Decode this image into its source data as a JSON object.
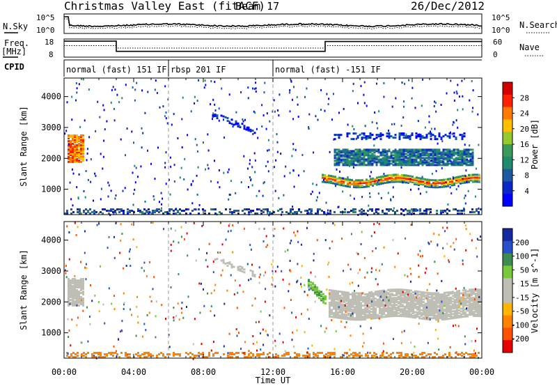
{
  "header": {
    "station": "Christmas Valley East (fitACF)",
    "beam": "Beam 17",
    "date": "26/Dec/2012"
  },
  "noise_panel": {
    "left_label": "N.Sky",
    "left_ticks": [
      "10^5",
      "10^0"
    ],
    "right_ticks": [
      "10^5",
      "10^0"
    ],
    "right_label": "N.Search"
  },
  "freq_panel": {
    "left_label": "Freq.",
    "left_unit": "[MHz]",
    "left_ticks": [
      "18",
      "8"
    ],
    "right_ticks": [
      "60",
      "0"
    ],
    "right_label": "Nave",
    "freq_steps": [
      [
        0,
        16.8
      ],
      [
        3.0,
        11.2
      ],
      [
        15.0,
        16.6
      ],
      [
        24,
        16.6
      ]
    ],
    "nave_steps": [
      [
        0,
        38
      ],
      [
        3.0,
        30
      ],
      [
        15.0,
        38
      ],
      [
        24,
        38
      ]
    ]
  },
  "cpid": {
    "label": "CPID",
    "segments": [
      {
        "start": 0,
        "end": 6.0,
        "label": "normal (fast) 151 IF"
      },
      {
        "start": 6.0,
        "end": 12.0,
        "label": "rbsp 201 IF"
      },
      {
        "start": 12.0,
        "end": 24,
        "label": "normal (fast) -151 IF"
      }
    ]
  },
  "x_axis": {
    "label": "Time UT",
    "ticks": [
      "00:00",
      "04:00",
      "08:00",
      "12:00",
      "16:00",
      "20:00",
      "00:00"
    ],
    "range_hours": [
      0,
      24
    ]
  },
  "chart_data": [
    {
      "type": "heatmap",
      "ylabel": "Slant Range [km]",
      "yticks": [
        1000,
        2000,
        3000,
        4000
      ],
      "ylim": [
        180,
        4600
      ],
      "xlim": [
        0,
        24
      ],
      "colorbar": {
        "label": "Power [dB]",
        "ticks": [
          "28",
          "24",
          "20",
          "16",
          "12",
          "8",
          "4"
        ],
        "colors": [
          "#d40000",
          "#ff2200",
          "#ff7a00",
          "#ffbf00",
          "#96c832",
          "#3c9a5a",
          "#1e8a6e",
          "#1e5aa0",
          "#0a28c8",
          "#0000ff"
        ]
      },
      "features": [
        {
          "name": "band",
          "x": [
            0.2,
            1.1
          ],
          "center_km": 2300,
          "level": 24
        },
        {
          "name": "band",
          "x": [
            14.8,
            23.9
          ],
          "center_km": 1300,
          "level": 26
        },
        {
          "name": "band",
          "x": [
            15.5,
            23.5
          ],
          "center_km": 2000,
          "level": 10
        },
        {
          "name": "band",
          "x": [
            15.5,
            23.0
          ],
          "center_km": 2700,
          "level": 6
        },
        {
          "name": "band",
          "x": [
            8.5,
            11.0
          ],
          "center_km": 3200,
          "level": 5
        },
        {
          "name": "band",
          "x": [
            0,
            24
          ],
          "center_km": 250,
          "level": 8
        }
      ]
    },
    {
      "type": "heatmap",
      "ylabel": "Slant Range [km]",
      "yticks": [
        1000,
        2000,
        3000,
        4000
      ],
      "ylim": [
        180,
        4600
      ],
      "xlim": [
        0,
        24
      ],
      "colorbar": {
        "label": "Velocity [m s^-1]",
        "ticks": [
          "200",
          "100",
          "50",
          "15",
          "-15",
          "-50",
          "-100",
          "-200"
        ],
        "colors": [
          "#1428a0",
          "#2850c8",
          "#3c8c50",
          "#78c83c",
          "#bebeb4",
          "#bebeb4",
          "#ffb400",
          "#ff8200",
          "#ff5000",
          "#e60000"
        ]
      },
      "features": [
        {
          "name": "band",
          "x": [
            0.2,
            1.1
          ],
          "center_km": 2300,
          "level": 0
        },
        {
          "name": "band",
          "x": [
            15.2,
            23.9
          ],
          "center_km": 1800,
          "level": 0
        },
        {
          "name": "band",
          "x": [
            14.0,
            15.0
          ],
          "center_km": 2000,
          "level": 30
        },
        {
          "name": "band",
          "x": [
            8.5,
            11.0
          ],
          "center_km": 3200,
          "level": 0
        },
        {
          "name": "band",
          "x": [
            0,
            24
          ],
          "center_km": 250,
          "level": -70
        }
      ]
    }
  ]
}
